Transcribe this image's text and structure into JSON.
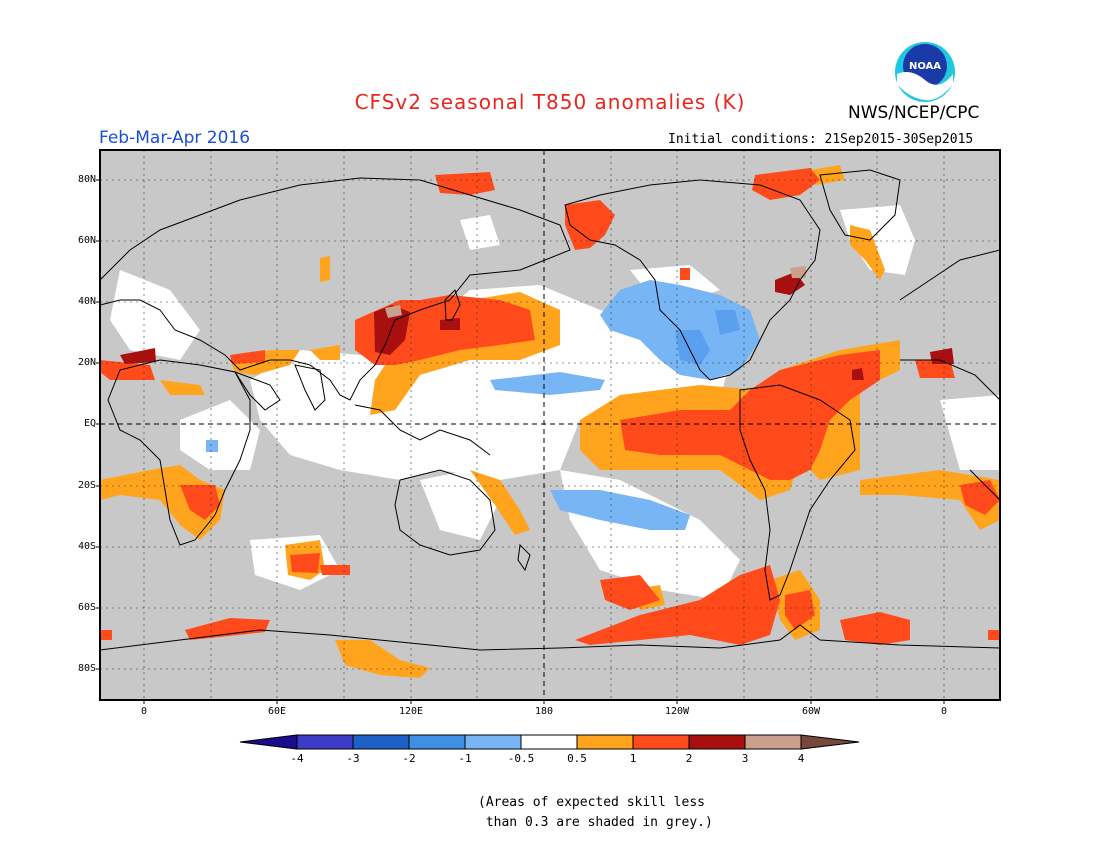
{
  "header": {
    "title": "CFSv2 seasonal T850 anomalies (K)",
    "org": "NWS/NCEP/CPC",
    "logo_text": "NOAA",
    "season": "Feb-Mar-Apr 2016",
    "initial_conditions": "Initial conditions: 21Sep2015-30Sep2015"
  },
  "axes": {
    "lat_labels": [
      "80N",
      "60N",
      "40N",
      "20N",
      "EQ",
      "20S",
      "40S",
      "60S",
      "80S"
    ],
    "lon_labels": [
      "0",
      "60E",
      "120E",
      "180",
      "120W",
      "60W",
      "0"
    ]
  },
  "colorbar": {
    "labels": [
      "-4",
      "-3",
      "-2",
      "-1",
      "-0.5",
      "0.5",
      "1",
      "2",
      "3",
      "4"
    ],
    "colors": [
      "#1a0d8c",
      "#3c3cc8",
      "#1f5fc8",
      "#3f8fe6",
      "#77b5f4",
      "#ffffff",
      "#ffa41c",
      "#ff4b1c",
      "#a80f0f",
      "#c8a08c",
      "#78483c"
    ]
  },
  "colors": {
    "grey_skill_mask": "#c8c8c8",
    "orange": "#ffa41c",
    "red": "#ff4b1c",
    "darkred": "#a80f0f",
    "lightblue": "#77b5f4",
    "midblue": "#5aa0ee"
  },
  "footnote": {
    "line1": "(Areas of expected skill less",
    "line2": " than 0.3 are shaded in grey.)"
  }
}
